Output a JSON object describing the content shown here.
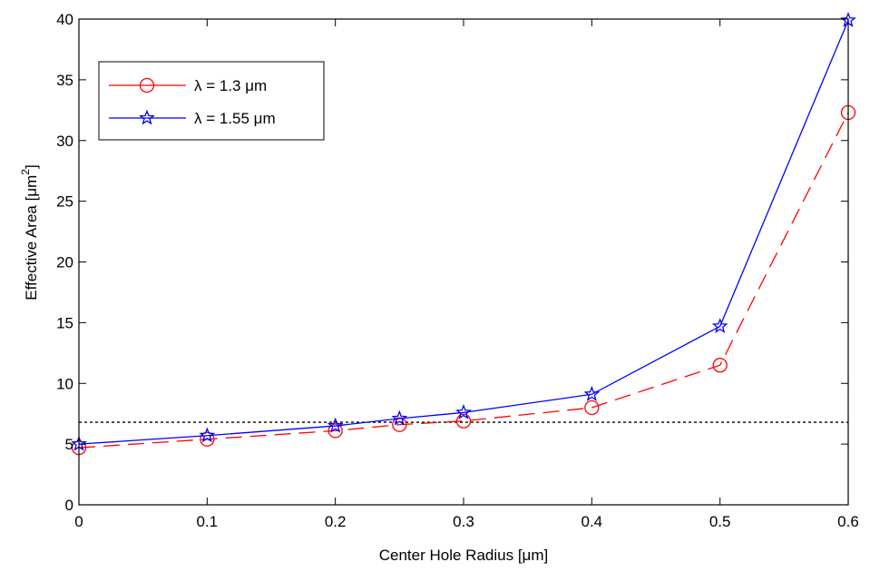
{
  "chart_data": {
    "type": "line",
    "title": "",
    "xlabel": "Center Hole Radius [μm]",
    "ylabel_main": "Effective Area [μm",
    "ylabel_sup": "2",
    "ylabel_end": "]",
    "xlim": [
      0,
      0.6
    ],
    "ylim": [
      0,
      40
    ],
    "xticks": [
      0,
      0.1,
      0.2,
      0.3,
      0.4,
      0.5,
      0.6
    ],
    "xtick_labels": [
      "0",
      "0.1",
      "0.2",
      "0.3",
      "0.4",
      "0.5",
      "0.6"
    ],
    "yticks": [
      0,
      5,
      10,
      15,
      20,
      25,
      30,
      35,
      40
    ],
    "ytick_labels": [
      "0",
      "5",
      "10",
      "15",
      "20",
      "25",
      "30",
      "35",
      "40"
    ],
    "grid": false,
    "legend_position": "top-left",
    "x": [
      0,
      0.1,
      0.2,
      0.25,
      0.3,
      0.4,
      0.5,
      0.6
    ],
    "series": [
      {
        "name": "λ = 1.3 μm",
        "color": "#ff0000",
        "line_style": "dashed",
        "marker": "circle",
        "values": [
          4.7,
          5.4,
          6.1,
          6.6,
          6.9,
          8.0,
          11.5,
          32.3
        ]
      },
      {
        "name": "λ = 1.55 μm",
        "color": "#0000ff",
        "line_style": "solid",
        "marker": "star",
        "values": [
          5.0,
          5.7,
          6.5,
          7.1,
          7.6,
          9.1,
          14.7,
          39.9
        ]
      }
    ],
    "reference_line": {
      "y": 6.8,
      "color": "#000000",
      "line_style": "dotted"
    }
  }
}
